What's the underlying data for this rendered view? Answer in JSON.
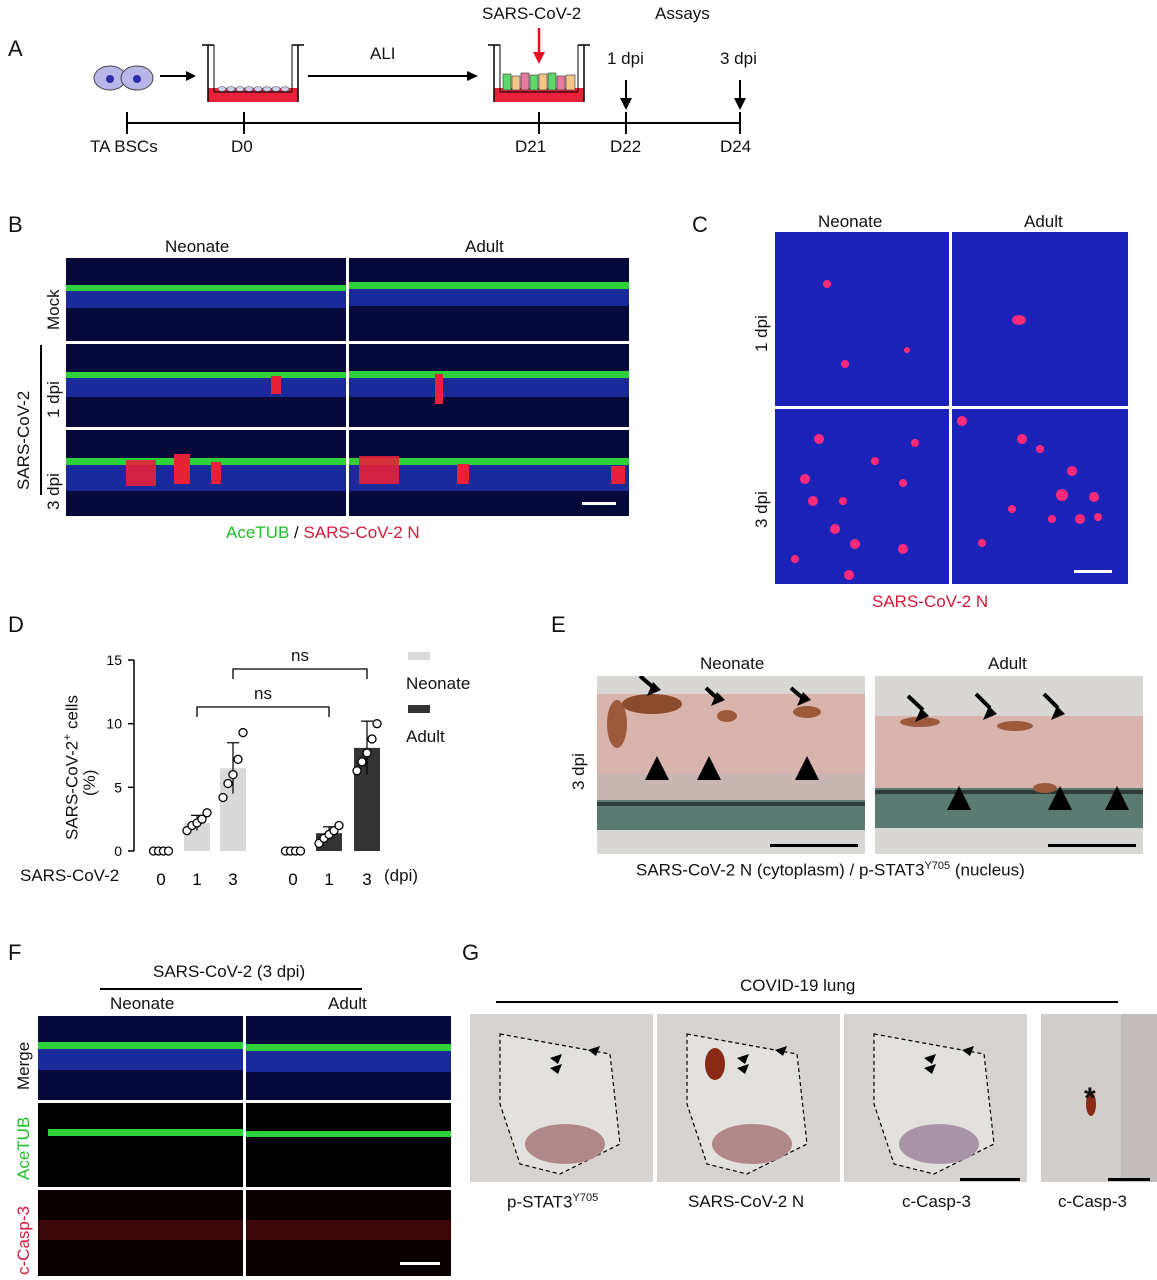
{
  "panelA": {
    "letter": "A",
    "labels": {
      "virus": "SARS-CoV-2",
      "assays": "Assays",
      "ali": "ALI",
      "dpi1": "1 dpi",
      "dpi3": "3 dpi",
      "ta_bscs": "TA BSCs",
      "d0": "D0",
      "d21": "D21",
      "d22": "D22",
      "d24": "D24"
    }
  },
  "panelB": {
    "letter": "B",
    "col_neonate": "Neonate",
    "col_adult": "Adult",
    "row_mock": "Mock",
    "row_1dpi": "1 dpi",
    "row_3dpi": "3 dpi",
    "group": "SARS-CoV-2",
    "legend_green": "AceTUB",
    "legend_sep": " / ",
    "legend_red": "SARS-CoV-2 N"
  },
  "panelC": {
    "letter": "C",
    "col_neonate": "Neonate",
    "col_adult": "Adult",
    "row_1dpi": "1 dpi",
    "row_3dpi": "3 dpi",
    "caption": "SARS-CoV-2 N"
  },
  "panelD": {
    "letter": "D",
    "ylabel_line1": "SARS-CoV-2",
    "ylabel_sup": "+",
    "ylabel_line1_end": " cells",
    "ylabel_line2": "(%)",
    "xrow_label": "SARS-CoV-2",
    "xunit": "(dpi)",
    "sig1": "ns",
    "sig2": "ns",
    "legend_neonate": "Neonate",
    "legend_adult": "Adult",
    "colors": {
      "neonate": "#d9d9d9",
      "adult": "#333333"
    }
  },
  "chart_data": {
    "type": "bar",
    "categories": [
      "0",
      "1",
      "3",
      "0",
      "1",
      "3"
    ],
    "series": [
      {
        "name": "Neonate",
        "x": [
          "0",
          "1",
          "3"
        ],
        "values": [
          0,
          2.2,
          6.5
        ],
        "error": [
          0,
          0.6,
          2.0
        ],
        "points": [
          [
            0,
            0,
            0,
            0
          ],
          [
            1.6,
            2.0,
            2.2,
            2.5,
            3.0
          ],
          [
            4.2,
            5.3,
            6.0,
            7.2,
            9.3
          ]
        ]
      },
      {
        "name": "Adult",
        "x": [
          "0",
          "1",
          "3"
        ],
        "values": [
          0,
          1.4,
          8.1
        ],
        "error": [
          0,
          0.5,
          2.1
        ],
        "points": [
          [
            0,
            0,
            0,
            0
          ],
          [
            0.6,
            1.0,
            1.3,
            1.6,
            2.0
          ],
          [
            6.3,
            7.0,
            7.7,
            8.8,
            10.0
          ]
        ]
      }
    ],
    "yticks": [
      0,
      5,
      10,
      15
    ],
    "ylim": [
      0,
      15
    ],
    "xlabel": "SARS-CoV-2",
    "ylabel": "SARS-CoV-2+ cells (%)",
    "annotations": [
      "ns",
      "ns"
    ]
  },
  "panelE": {
    "letter": "E",
    "col_neonate": "Neonate",
    "col_adult": "Adult",
    "row": "3 dpi",
    "caption_pre": "SARS-CoV-2 N (cytoplasm) / p-STAT3",
    "caption_sup": "Y705",
    "caption_post": " (nucleus)"
  },
  "panelF": {
    "letter": "F",
    "group": "SARS-CoV-2 (3 dpi)",
    "col_neonate": "Neonate",
    "col_adult": "Adult",
    "row_merge": "Merge",
    "row_acetub": "AceTUB",
    "row_casp": "c-Casp-3"
  },
  "panelG": {
    "letter": "G",
    "title": "COVID-19 lung",
    "cap1_pre": "p-STAT3",
    "cap1_sup": "Y705",
    "cap2": "SARS-CoV-2 N",
    "cap3": "c-Casp-3",
    "cap4": "c-Casp-3",
    "asterisk": "*"
  }
}
